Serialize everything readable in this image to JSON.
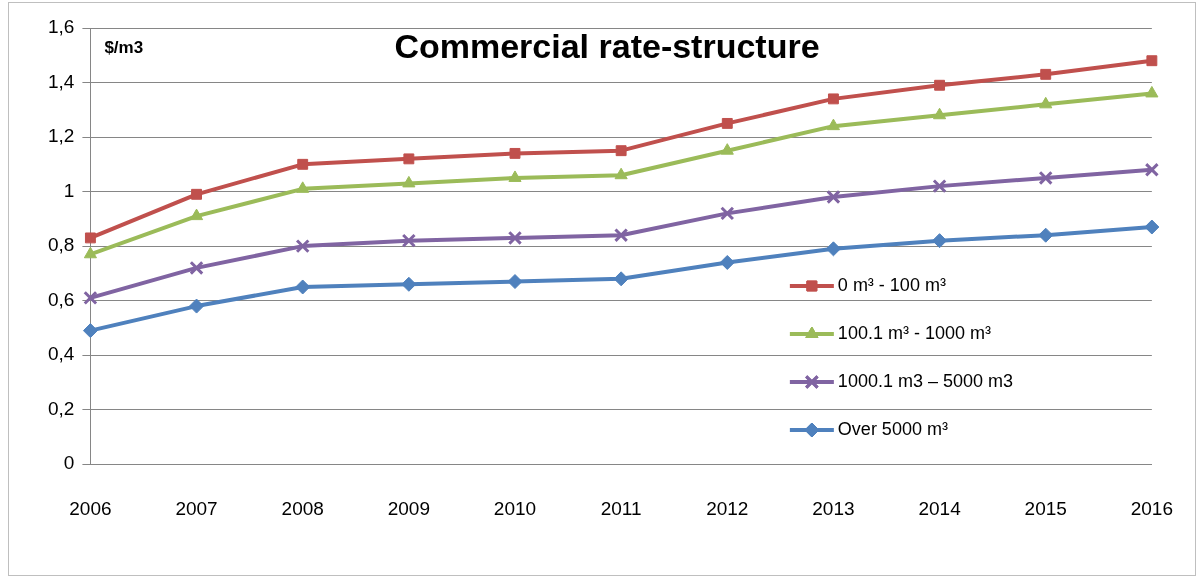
{
  "chart_data": {
    "type": "line",
    "title": "Commercial rate-structure",
    "ylabel": "$/m3",
    "categories": [
      "2006",
      "2007",
      "2008",
      "2009",
      "2010",
      "2011",
      "2012",
      "2013",
      "2014",
      "2015",
      "2016"
    ],
    "series": [
      {
        "name": "0 m³ - 100 m³",
        "color": "#c0504d",
        "marker": "square",
        "values": [
          0.83,
          0.99,
          1.1,
          1.12,
          1.14,
          1.15,
          1.25,
          1.34,
          1.39,
          1.43,
          1.48
        ]
      },
      {
        "name": "100.1 m³ - 1000 m³",
        "color": "#9bbb59",
        "marker": "triangle",
        "values": [
          0.77,
          0.91,
          1.01,
          1.03,
          1.05,
          1.06,
          1.15,
          1.24,
          1.28,
          1.32,
          1.36
        ]
      },
      {
        "name": "1000.1 m3 – 5000 m3",
        "color": "#8064a2",
        "marker": "cross",
        "values": [
          0.61,
          0.72,
          0.8,
          0.82,
          0.83,
          0.84,
          0.92,
          0.98,
          1.02,
          1.05,
          1.08
        ]
      },
      {
        "name": "Over 5000 m³",
        "color": "#4f81bd",
        "marker": "diamond",
        "values": [
          0.49,
          0.58,
          0.65,
          0.66,
          0.67,
          0.68,
          0.74,
          0.79,
          0.82,
          0.84,
          0.87
        ]
      }
    ],
    "ylim": [
      0,
      1.6
    ],
    "yticks": [
      0,
      {
        "value": 0.2,
        "label": "0,2"
      },
      {
        "value": 0.4,
        "label": "0,4"
      },
      {
        "value": 0.6,
        "label": "0,6"
      },
      {
        "value": 0.8,
        "label": "0,8"
      },
      1,
      {
        "value": 1.2,
        "label": "1,2"
      },
      {
        "value": 1.4,
        "label": "1,4"
      },
      {
        "value": 1.6,
        "label": "1,6"
      }
    ],
    "grid": "y",
    "legend": "right"
  }
}
